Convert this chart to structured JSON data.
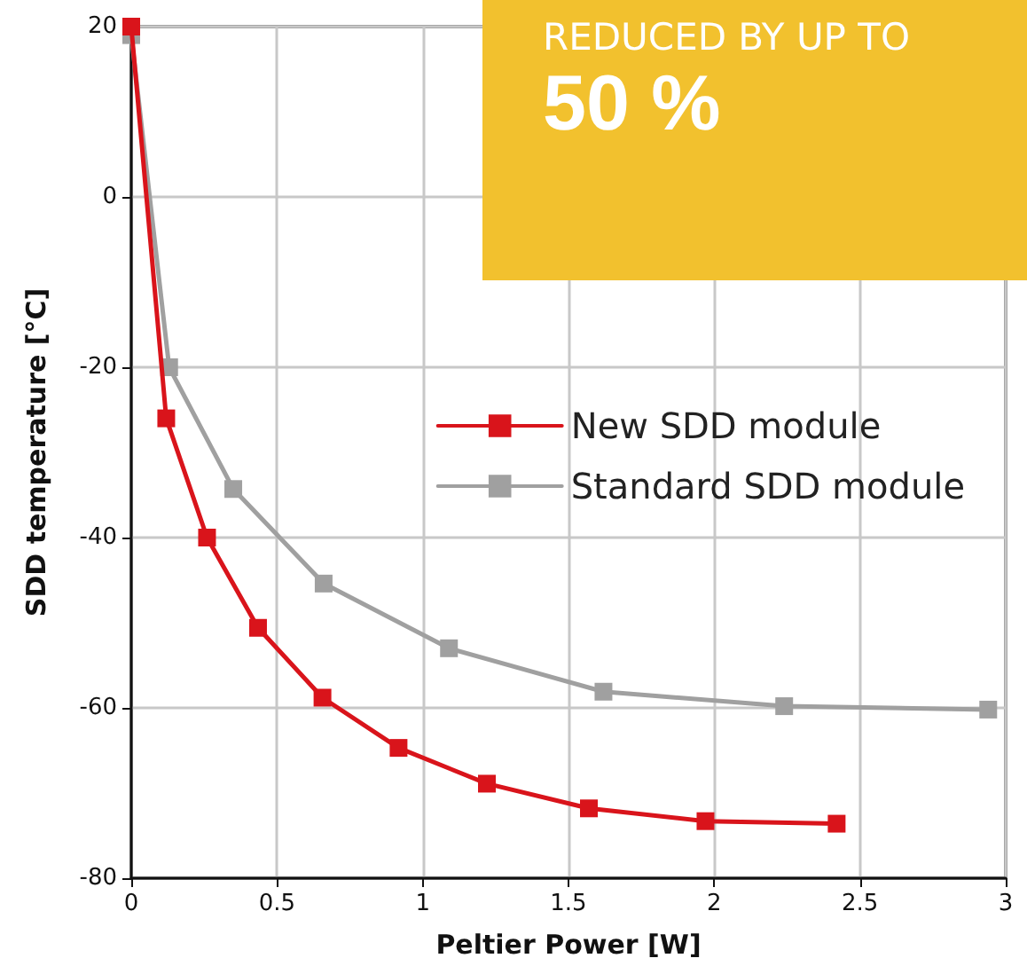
{
  "chart_data": {
    "type": "line",
    "xlabel": "Peltier Power [W]",
    "ylabel": "SDD temperature [°C]",
    "xlim": [
      0,
      3
    ],
    "xticks": [
      0,
      0.5,
      1,
      1.5,
      2,
      2.5,
      3
    ],
    "ylim": [
      -80,
      20
    ],
    "yticks": [
      -80,
      -60,
      -40,
      -20,
      0,
      20
    ],
    "grid": true,
    "legend": "right",
    "marker": "square",
    "line_style": "solid",
    "annotations": [
      "REDUCED BY UP TO",
      "50 %"
    ],
    "series": [
      {
        "name": "New SDD module",
        "color": "#d9141b",
        "x": [
          0,
          0.12,
          0.26,
          0.435,
          0.656,
          0.917,
          1.22,
          1.57,
          1.97,
          2.42
        ],
        "values": [
          20,
          -26,
          -40,
          -50.6,
          -58.8,
          -64.7,
          -68.9,
          -71.8,
          -73.3,
          -73.6
        ]
      },
      {
        "name": "Standard SDD module",
        "color": "#a0a0a0",
        "x": [
          0,
          0.13,
          0.35,
          0.66,
          1.09,
          1.62,
          2.24,
          2.94
        ],
        "values": [
          19,
          -20,
          -34.3,
          -45.4,
          -53,
          -58.1,
          -59.8,
          -60.2
        ]
      }
    ]
  }
}
